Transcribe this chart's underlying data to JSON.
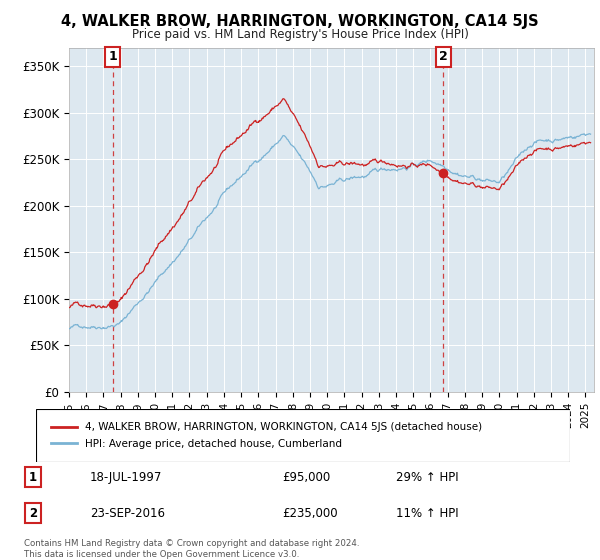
{
  "title": "4, WALKER BROW, HARRINGTON, WORKINGTON, CA14 5JS",
  "subtitle": "Price paid vs. HM Land Registry's House Price Index (HPI)",
  "ylim": [
    0,
    370000
  ],
  "xlim_start": 1995.0,
  "xlim_end": 2025.5,
  "yticks": [
    0,
    50000,
    100000,
    150000,
    200000,
    250000,
    300000,
    350000
  ],
  "ytick_labels": [
    "£0",
    "£50K",
    "£100K",
    "£150K",
    "£200K",
    "£250K",
    "£300K",
    "£350K"
  ],
  "xticks": [
    1995,
    1996,
    1997,
    1998,
    1999,
    2000,
    2001,
    2002,
    2003,
    2004,
    2005,
    2006,
    2007,
    2008,
    2009,
    2010,
    2011,
    2012,
    2013,
    2014,
    2015,
    2016,
    2017,
    2018,
    2019,
    2020,
    2021,
    2022,
    2023,
    2024,
    2025
  ],
  "sale1_x": 1997.54,
  "sale1_y": 95000,
  "sale1_label": "1",
  "sale1_date": "18-JUL-1997",
  "sale1_price": "£95,000",
  "sale1_hpi": "29% ↑ HPI",
  "sale2_x": 2016.73,
  "sale2_y": 235000,
  "sale2_label": "2",
  "sale2_date": "23-SEP-2016",
  "sale2_price": "£235,000",
  "sale2_hpi": "11% ↑ HPI",
  "line_color_hpi": "#7ab3d4",
  "line_color_price": "#cc2222",
  "background_color": "#dde8f0",
  "grid_color": "#ffffff",
  "legend_label_price": "4, WALKER BROW, HARRINGTON, WORKINGTON, CA14 5JS (detached house)",
  "legend_label_hpi": "HPI: Average price, detached house, Cumberland",
  "footnote": "Contains HM Land Registry data © Crown copyright and database right 2024.\nThis data is licensed under the Open Government Licence v3.0."
}
